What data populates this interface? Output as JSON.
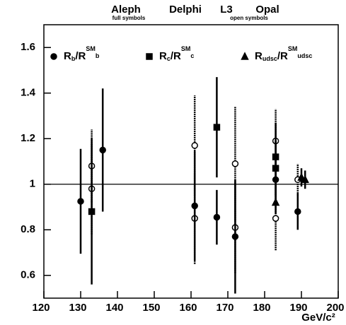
{
  "chart_data": {
    "type": "scatter",
    "experiments": [
      "Aleph",
      "Delphi",
      "L3",
      "Opal"
    ],
    "annotations": [
      "full symbols",
      "open symbols"
    ],
    "xlabel": "GeV/c²",
    "xlim": [
      120,
      200
    ],
    "xticks": [
      120,
      130,
      140,
      150,
      160,
      170,
      180,
      190,
      200
    ],
    "ylim": [
      0.5,
      1.7
    ],
    "yticks": [
      0.6,
      0.8,
      1,
      1.2,
      1.4,
      1.6
    ],
    "hline": 1,
    "series": [
      {
        "name_parts": [
          "R",
          "b",
          "/R",
          "SM",
          "b"
        ],
        "marker": "circle",
        "color": "#000000",
        "x": [
          130,
          133,
          133,
          136,
          161,
          161,
          161,
          167,
          172,
          172,
          172,
          183,
          183,
          183,
          189,
          189
        ],
        "values": [
          0.925,
          0.98,
          1.08,
          1.15,
          0.85,
          1.17,
          0.905,
          0.855,
          1.09,
          0.81,
          0.77,
          1.19,
          0.85,
          1.02,
          1.02,
          0.88
        ],
        "errors": [
          0.23,
          0.2,
          0.16,
          0.27,
          0.2,
          0.22,
          0.24,
          0.12,
          0.25,
          0.2,
          0.25,
          0.14,
          0.14,
          0.1,
          0.07,
          0.08
        ],
        "open": [
          false,
          true,
          true,
          false,
          true,
          true,
          false,
          false,
          true,
          true,
          false,
          true,
          true,
          false,
          true,
          false
        ]
      },
      {
        "name_parts": [
          "R",
          "c",
          "/R",
          "SM",
          "c"
        ],
        "marker": "square",
        "color": "#000000",
        "x": [
          133,
          167,
          183,
          183
        ],
        "values": [
          0.88,
          1.25,
          1.12,
          1.07
        ],
        "errors": [
          0.32,
          0.22,
          0.15,
          0.12
        ],
        "open": [
          false,
          false,
          false,
          false
        ]
      },
      {
        "name_parts": [
          "R",
          "udsc",
          "/R",
          "SM",
          "udsc"
        ],
        "marker": "triangle",
        "color": "#000000",
        "x": [
          183,
          190,
          191
        ],
        "values": [
          0.92,
          1.03,
          1.02
        ],
        "errors": [
          0.05,
          0.04,
          0.04
        ],
        "open": [
          false,
          false,
          false
        ]
      }
    ]
  }
}
